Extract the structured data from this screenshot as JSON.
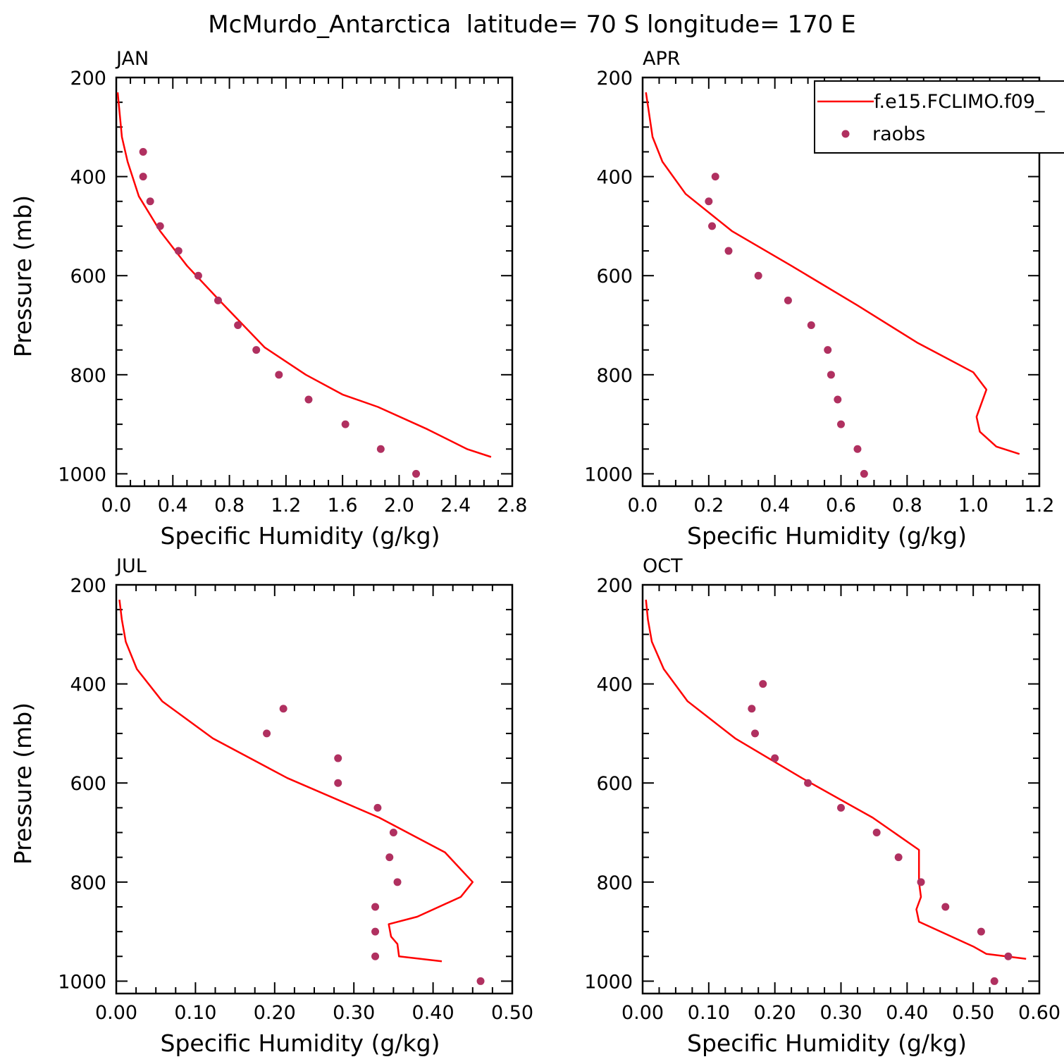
{
  "figure": {
    "title": "McMurdo_Antarctica  latitude= 70 S longitude= 170 E"
  },
  "legend": {
    "model_label": "f.e15.FCLIMO.f09_",
    "obs_label": "raobs"
  },
  "colors": {
    "model_line": "#ff0000",
    "obs_marker": "#b03060",
    "axes": "#000000"
  },
  "chart_data": [
    {
      "type": "line",
      "panel": "JAN",
      "title": "JAN",
      "xlabel": "Specific Humidity (g/kg)",
      "ylabel": "Pressure (mb)",
      "xlim": [
        0,
        2.8
      ],
      "ylim": [
        200,
        1025
      ],
      "y_inverted": true,
      "xticks": [
        0.0,
        0.4,
        0.8,
        1.2,
        1.6,
        2.0,
        2.4,
        2.8
      ],
      "xtick_labels": [
        "0.0",
        "0.4",
        "0.8",
        "1.2",
        "1.6",
        "2.0",
        "2.4",
        "2.8"
      ],
      "yticks": [
        200,
        400,
        600,
        800,
        1000
      ],
      "ytick_labels": [
        "200",
        "400",
        "600",
        "800",
        "1000"
      ],
      "series": [
        {
          "name": "f.e15.FCLIMO.f09_",
          "kind": "line",
          "x": [
            0.01,
            0.04,
            0.08,
            0.16,
            0.31,
            0.5,
            0.73,
            1.05,
            1.34,
            1.6,
            1.85,
            2.2,
            2.48,
            2.65
          ],
          "y": [
            230,
            320,
            370,
            440,
            510,
            580,
            650,
            745,
            800,
            840,
            865,
            910,
            950,
            966
          ]
        },
        {
          "name": "raobs",
          "kind": "scatter",
          "x": [
            0.19,
            0.19,
            0.24,
            0.31,
            0.44,
            0.58,
            0.72,
            0.86,
            0.99,
            1.15,
            1.36,
            1.62,
            1.87,
            2.12
          ],
          "y": [
            350,
            400,
            450,
            500,
            550,
            600,
            650,
            700,
            750,
            800,
            850,
            900,
            950,
            1000
          ]
        }
      ]
    },
    {
      "type": "line",
      "panel": "APR",
      "title": "APR",
      "xlabel": "Specific Humidity (g/kg)",
      "ylabel": "",
      "xlim": [
        0,
        1.2
      ],
      "ylim": [
        200,
        1025
      ],
      "y_inverted": true,
      "xticks": [
        0.0,
        0.2,
        0.4,
        0.6,
        0.8,
        1.0,
        1.2
      ],
      "xtick_labels": [
        "0.0",
        "0.2",
        "0.4",
        "0.6",
        "0.8",
        "1.0",
        "1.2"
      ],
      "yticks": [
        200,
        400,
        600,
        800,
        1000
      ],
      "ytick_labels": [
        "200",
        "400",
        "600",
        "800",
        "1000"
      ],
      "legend": {
        "position": "top-right"
      },
      "series": [
        {
          "name": "f.e15.FCLIMO.f09_",
          "kind": "line",
          "x": [
            0.01,
            0.03,
            0.06,
            0.13,
            0.27,
            0.45,
            0.65,
            0.83,
            1.0,
            1.04,
            1.01,
            1.02,
            1.07,
            1.14
          ],
          "y": [
            230,
            320,
            370,
            435,
            510,
            580,
            660,
            735,
            795,
            830,
            885,
            915,
            945,
            960
          ]
        },
        {
          "name": "raobs",
          "kind": "scatter",
          "x": [
            0.22,
            0.2,
            0.21,
            0.26,
            0.35,
            0.44,
            0.51,
            0.56,
            0.57,
            0.59,
            0.6,
            0.65,
            0.67
          ],
          "y": [
            400,
            450,
            500,
            550,
            600,
            650,
            700,
            750,
            800,
            850,
            900,
            950,
            1000
          ]
        }
      ]
    },
    {
      "type": "line",
      "panel": "JUL",
      "title": "JUL",
      "xlabel": "Specific Humidity (g/kg)",
      "ylabel": "Pressure (mb)",
      "xlim": [
        0,
        0.5
      ],
      "ylim": [
        200,
        1025
      ],
      "y_inverted": true,
      "xticks": [
        0.0,
        0.1,
        0.2,
        0.3,
        0.4,
        0.5
      ],
      "xtick_labels": [
        "0.00",
        "0.10",
        "0.20",
        "0.30",
        "0.40",
        "0.50"
      ],
      "yticks": [
        200,
        400,
        600,
        800,
        1000
      ],
      "ytick_labels": [
        "200",
        "400",
        "600",
        "800",
        "1000"
      ],
      "series": [
        {
          "name": "f.e15.FCLIMO.f09_",
          "kind": "line",
          "x": [
            0.004,
            0.007,
            0.012,
            0.026,
            0.058,
            0.122,
            0.216,
            0.332,
            0.415,
            0.45,
            0.435,
            0.38,
            0.344,
            0.347,
            0.355,
            0.357,
            0.411
          ],
          "y": [
            230,
            270,
            315,
            370,
            435,
            510,
            590,
            670,
            740,
            800,
            830,
            870,
            885,
            910,
            925,
            950,
            960
          ]
        },
        {
          "name": "raobs",
          "kind": "scatter",
          "x": [
            0.211,
            0.19,
            0.28,
            0.28,
            0.33,
            0.35,
            0.345,
            0.355,
            0.327,
            0.327,
            0.327,
            0.46
          ],
          "y": [
            450,
            500,
            550,
            600,
            650,
            700,
            750,
            800,
            850,
            900,
            950,
            1000
          ]
        }
      ]
    },
    {
      "type": "line",
      "panel": "OCT",
      "title": "OCT",
      "xlabel": "Specific Humidity (g/kg)",
      "ylabel": "",
      "xlim": [
        0,
        0.6
      ],
      "ylim": [
        200,
        1025
      ],
      "y_inverted": true,
      "xticks": [
        0.0,
        0.1,
        0.2,
        0.3,
        0.4,
        0.5,
        0.6
      ],
      "xtick_labels": [
        "0.00",
        "0.10",
        "0.20",
        "0.30",
        "0.40",
        "0.50",
        "0.60"
      ],
      "yticks": [
        200,
        400,
        600,
        800,
        1000
      ],
      "ytick_labels": [
        "200",
        "400",
        "600",
        "800",
        "1000"
      ],
      "series": [
        {
          "name": "f.e15.FCLIMO.f09_",
          "kind": "line",
          "x": [
            0.005,
            0.008,
            0.014,
            0.032,
            0.068,
            0.14,
            0.241,
            0.348,
            0.418,
            0.418,
            0.421,
            0.414,
            0.418,
            0.5,
            0.52,
            0.58
          ],
          "y": [
            230,
            270,
            315,
            370,
            435,
            510,
            590,
            670,
            735,
            800,
            830,
            855,
            880,
            930,
            945,
            955
          ]
        },
        {
          "name": "raobs",
          "kind": "scatter",
          "x": [
            0.182,
            0.165,
            0.17,
            0.2,
            0.25,
            0.3,
            0.354,
            0.387,
            0.421,
            0.458,
            0.512,
            0.553,
            0.532
          ],
          "y": [
            400,
            450,
            500,
            550,
            600,
            650,
            700,
            750,
            800,
            850,
            900,
            950,
            1000
          ]
        }
      ]
    }
  ]
}
